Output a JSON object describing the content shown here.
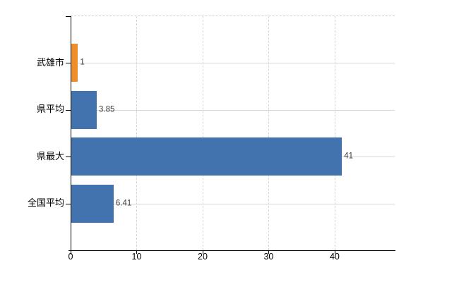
{
  "chart_data": {
    "type": "bar",
    "orientation": "horizontal",
    "title": "",
    "xlabel": "",
    "ylabel": "",
    "legend": "none",
    "categories": [
      "武雄市",
      "県平均",
      "県最大",
      "全国平均"
    ],
    "values": [
      1,
      3.85,
      41,
      6.41
    ],
    "value_labels": [
      "1",
      "3.85",
      "41",
      "6.41"
    ],
    "bar_colors": [
      "#ef8d2c",
      "#4273ae",
      "#4273ae",
      "#4273ae"
    ],
    "highlight_color": "#ef8d2c",
    "default_bar_color": "#4273ae",
    "x_tick_labels": [
      "0",
      "10",
      "20",
      "30",
      "40"
    ],
    "x_tick_values": [
      0,
      10,
      20,
      30,
      40
    ],
    "xlim": [
      0,
      49.1
    ],
    "grid": {
      "vertical_lines": "dashed",
      "horizontal_category_lines": "solid",
      "top_border": "dashed"
    }
  },
  "colors": {
    "background": "#ffffff",
    "axis": "#000000",
    "grid_vertical": "#d8d3d8",
    "grid_horizontal": "#d4dad2",
    "category_text": "#000000",
    "value_text": "#3c3c3c"
  }
}
